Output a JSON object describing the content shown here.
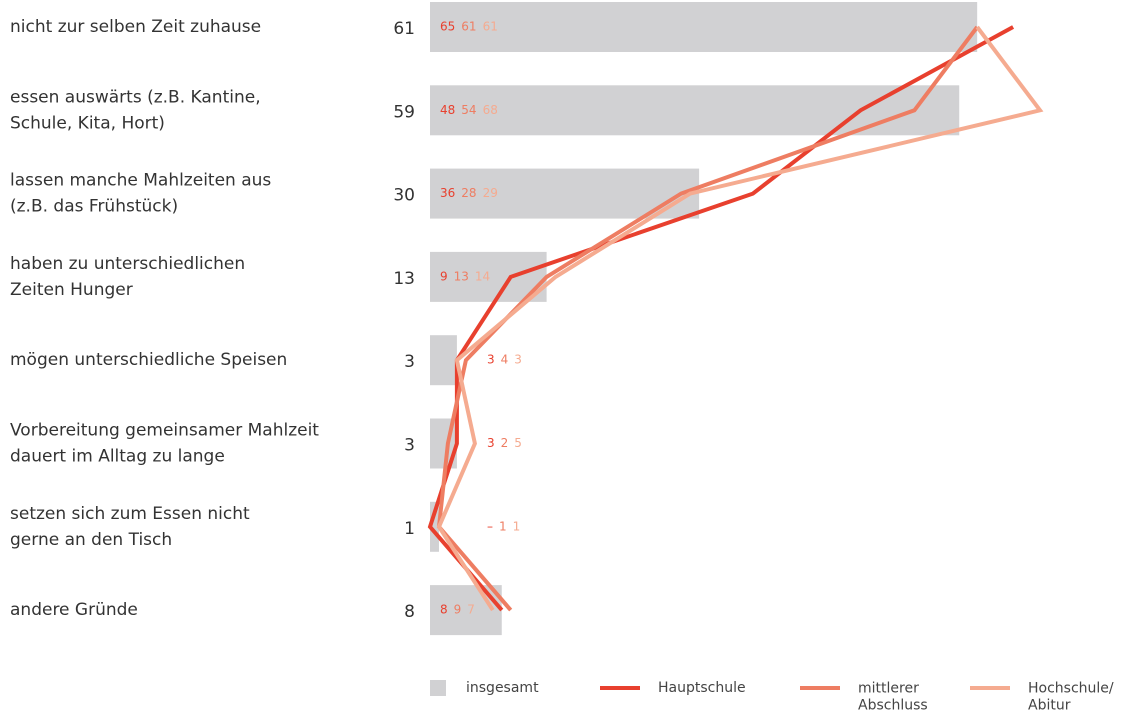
{
  "chart_data": {
    "type": "bar-line",
    "categories": [
      "nicht zur selben Zeit zuhause",
      "essen auswärts (z.B. Kantine,\nSchule, Kita, Hort)",
      "lassen manche Mahlzeiten aus\n(z.B. das Frühstück)",
      "haben zu unterschiedlichen\nZeiten Hunger",
      "mögen unterschiedliche Speisen",
      "Vorbereitung gemeinsamer Mahlzeit\ndauert im Alltag zu lange",
      "setzen sich zum Essen nicht\ngerne an den Tisch",
      "andere Gründe"
    ],
    "bar": {
      "name": "insgesamt",
      "color": "#d1d1d3",
      "values": [
        61,
        59,
        30,
        13,
        3,
        3,
        1,
        8
      ]
    },
    "series": [
      {
        "name": "Hauptschule",
        "color": "#e8402e",
        "values": [
          65,
          48,
          36,
          9,
          3,
          3,
          0,
          8
        ],
        "value_labels": [
          "65",
          "48",
          "36",
          "9",
          "3",
          "3",
          "–",
          "8"
        ]
      },
      {
        "name": "mittlerer\nAbschluss",
        "color": "#ee7d62",
        "values": [
          61,
          54,
          28,
          13,
          4,
          2,
          1,
          9
        ]
      },
      {
        "name": "Hochschule/\nAbitur",
        "color": "#f5ab90",
        "values": [
          61,
          68,
          29,
          14,
          3,
          5,
          1,
          7
        ]
      }
    ]
  }
}
